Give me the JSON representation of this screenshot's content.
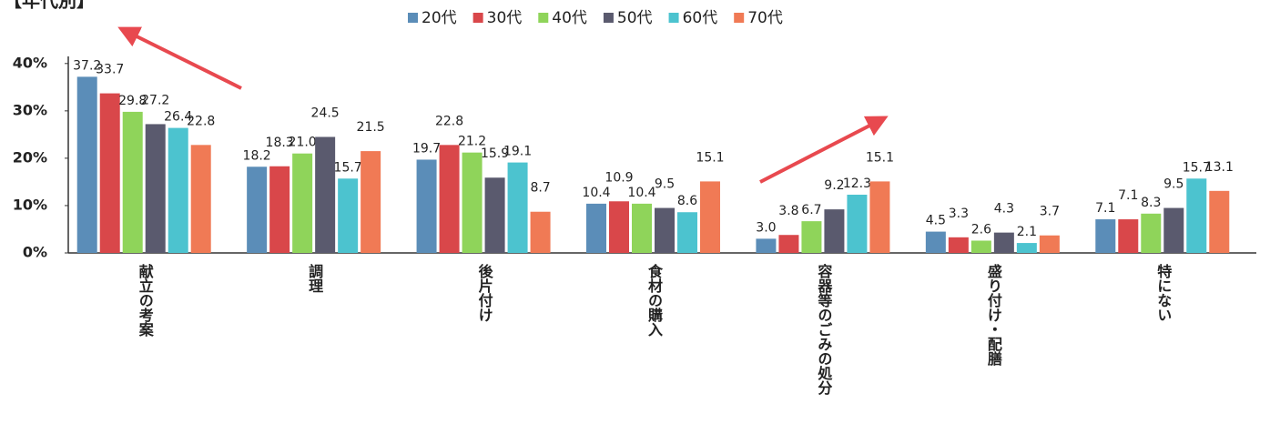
{
  "chart_data": {
    "type": "bar",
    "title": "【年代別】",
    "categories": [
      "献立の考案",
      "調理",
      "後片付け",
      "食材の購入",
      "容器等のごみの処分",
      "盛り付け・配膳",
      "特にない"
    ],
    "series": [
      {
        "name": "20代",
        "color": "#5b8db8",
        "values": [
          37.2,
          18.2,
          19.7,
          10.4,
          3.0,
          4.5,
          7.1
        ],
        "value_labels": [
          "37.2",
          "18.2",
          "19.7",
          "10.4",
          "3.0",
          "4.5",
          "7.1"
        ]
      },
      {
        "name": "30代",
        "color": "#d9474a",
        "values": [
          33.7,
          18.3,
          22.8,
          10.9,
          3.8,
          3.3,
          7.1
        ],
        "value_labels": [
          "33.7",
          "18.3",
          "22.8",
          "10.9",
          "3.8",
          "3.3",
          "7.1"
        ]
      },
      {
        "name": "40代",
        "color": "#8fd45a",
        "values": [
          29.8,
          21.0,
          21.2,
          10.4,
          6.7,
          2.6,
          8.3
        ],
        "value_labels": [
          "29.8",
          "21.0",
          "21.2",
          "10.4",
          "6.7",
          "2.6",
          "8.3"
        ]
      },
      {
        "name": "50代",
        "color": "#5a5a6e",
        "values": [
          27.2,
          24.5,
          15.9,
          9.5,
          9.2,
          4.3,
          9.5
        ],
        "value_labels": [
          "27.2",
          "24.5",
          "15.9",
          "9.5",
          "9.2",
          "4.3",
          "9.5"
        ]
      },
      {
        "name": "60代",
        "color": "#4cc3cf",
        "values": [
          26.4,
          15.7,
          19.1,
          8.6,
          12.3,
          2.1,
          15.7
        ],
        "value_labels": [
          "26.4",
          "15.7",
          "19.1",
          "8.6",
          "12.3",
          "2.1",
          "15.7"
        ]
      },
      {
        "name": "70代",
        "color": "#f07a55",
        "values": [
          22.8,
          21.5,
          8.7,
          15.1,
          15.1,
          3.7,
          13.1
        ],
        "value_labels": [
          "22.8",
          "21.5",
          "8.7",
          "15.1",
          "15.1",
          "3.7",
          "13.1"
        ]
      }
    ],
    "ylim": [
      0,
      41.5
    ],
    "yticks": [
      {
        "value": 0,
        "label": "0%"
      },
      {
        "value": 10,
        "label": "10%"
      },
      {
        "value": 20,
        "label": "20%"
      },
      {
        "value": 30,
        "label": "30%"
      },
      {
        "value": 40,
        "label": "40%"
      }
    ],
    "legend": "top"
  }
}
